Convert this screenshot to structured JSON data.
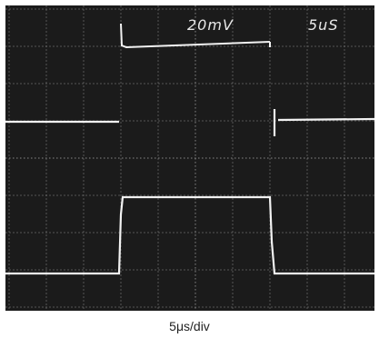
{
  "screen": {
    "volts_per_div": "20mV",
    "time_per_div": "5uS"
  },
  "caption": "5μs/div",
  "colors": {
    "screen_background": "#1b1b1b",
    "grid": "#6a6a6a",
    "trace": "#f2f2f2",
    "page_background": "#ffffff",
    "caption_text": "#222222"
  }
}
